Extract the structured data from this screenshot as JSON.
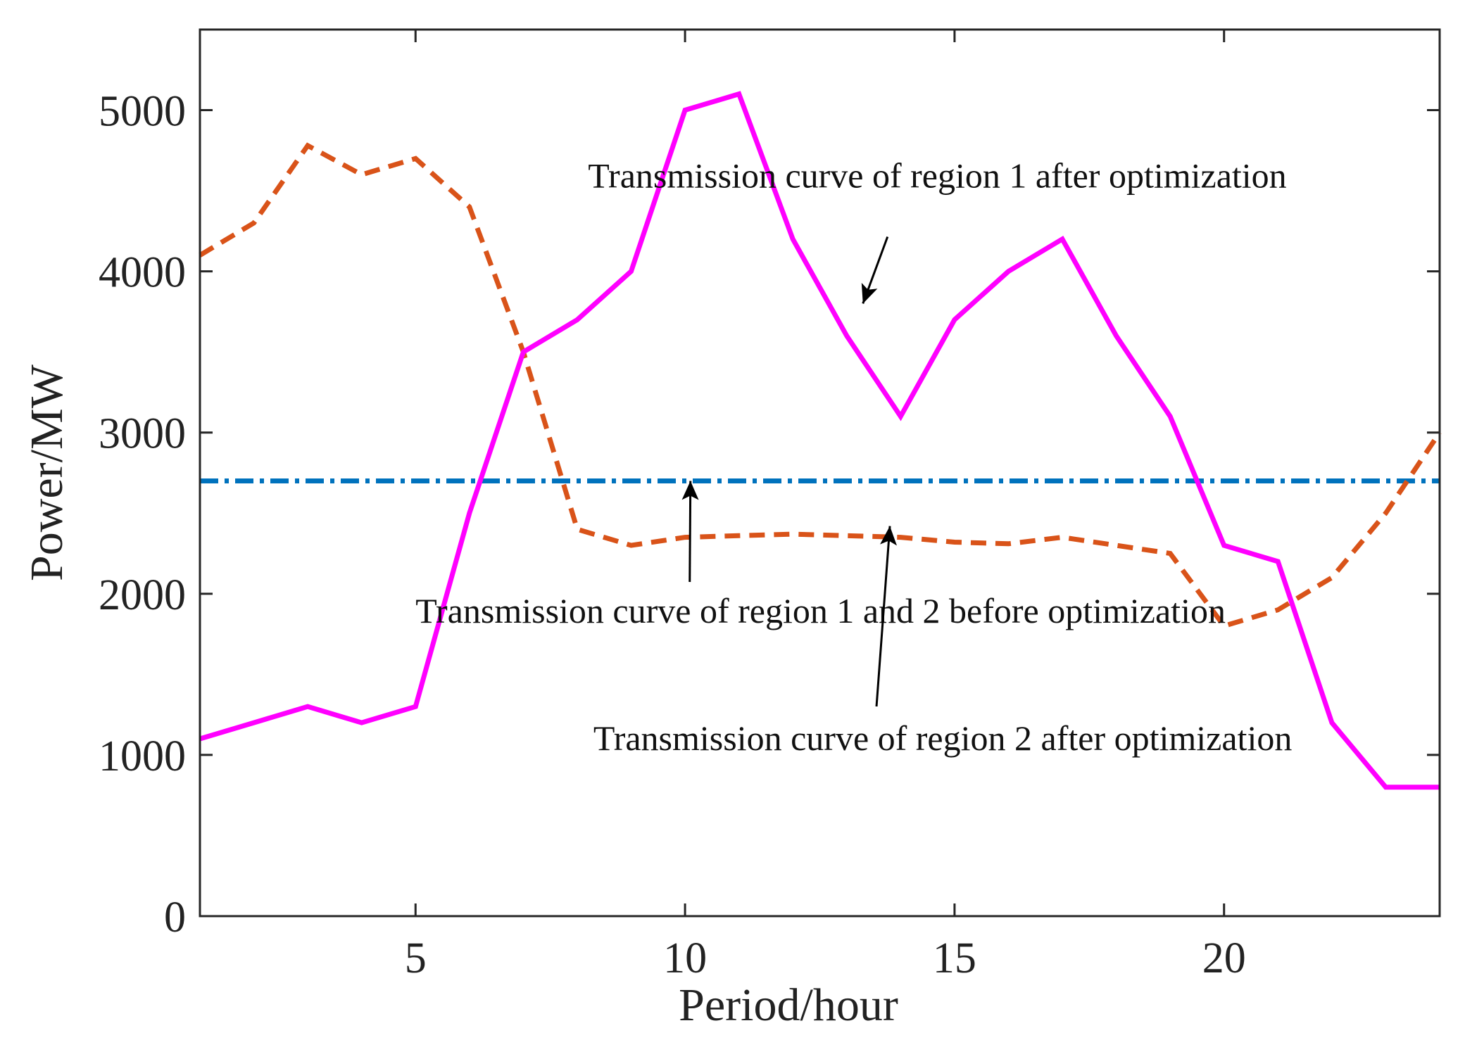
{
  "chart_data": {
    "type": "line",
    "title": "",
    "xlabel": "Period/hour",
    "ylabel": "Power/MW",
    "xlim": [
      1,
      24
    ],
    "ylim": [
      0,
      5500
    ],
    "xticks": [
      5,
      10,
      15,
      20
    ],
    "yticks": [
      0,
      1000,
      2000,
      3000,
      4000,
      5000
    ],
    "grid": false,
    "x": [
      1,
      2,
      3,
      4,
      5,
      6,
      7,
      8,
      9,
      10,
      11,
      12,
      13,
      14,
      15,
      16,
      17,
      18,
      19,
      20,
      21,
      22,
      23,
      24
    ],
    "series": [
      {
        "name": "Transmission curve of region 1 after optimization",
        "color": "#ff00ff",
        "style": "solid",
        "values": [
          1100,
          1200,
          1300,
          1200,
          1300,
          2500,
          3500,
          3700,
          4000,
          5000,
          5100,
          4200,
          3600,
          3100,
          3700,
          4000,
          4200,
          3600,
          3100,
          2300,
          2200,
          1200,
          800,
          800
        ]
      },
      {
        "name": "Transmission curve of region 2 after optimization",
        "color": "#d95319",
        "style": "dashed",
        "values": [
          4100,
          4300,
          4780,
          4600,
          4700,
          4400,
          3500,
          2400,
          2300,
          2350,
          2360,
          2370,
          2360,
          2350,
          2320,
          2310,
          2350,
          2300,
          2250,
          1800,
          1900,
          2100,
          2500,
          3000
        ]
      },
      {
        "name": "Transmission curve of region 1 and 2 before optimization",
        "color": "#0072bd",
        "style": "dashdot",
        "values": [
          2700,
          2700,
          2700,
          2700,
          2700,
          2700,
          2700,
          2700,
          2700,
          2700,
          2700,
          2700,
          2700,
          2700,
          2700,
          2700,
          2700,
          2700,
          2700,
          2700,
          2700,
          2700,
          2700,
          2700
        ]
      }
    ],
    "annotations": [
      {
        "text": "Transmission curve of region 1 after optimization",
        "x_text": 8.2,
        "y_text": 4520,
        "x_arrow": 13.3,
        "y_arrow": 3800
      },
      {
        "text": "Transmission curve of region 1 and 2 before optimization",
        "x_text": 5.0,
        "y_text": 1820,
        "x_arrow": 10.1,
        "y_arrow": 2700
      },
      {
        "text": "Transmission curve of region 2 after optimization",
        "x_text": 8.3,
        "y_text": 1030,
        "x_arrow": 13.8,
        "y_arrow": 2420
      }
    ]
  }
}
